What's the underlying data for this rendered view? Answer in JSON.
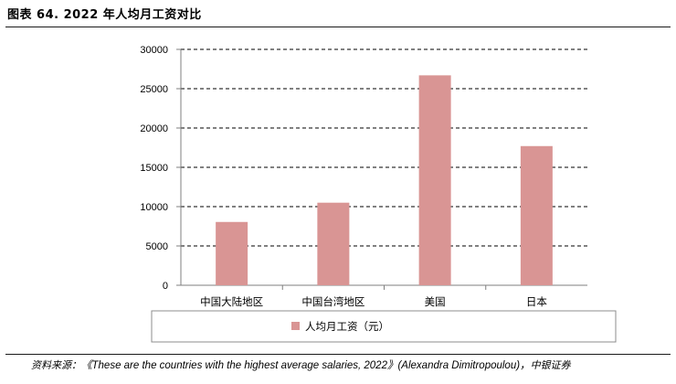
{
  "figure_title": "图表 64. 2022 年人均月工资对比",
  "source": {
    "prefix": "资料来源：",
    "text": "《These are the countries with the highest average salaries, 2022》(Alexandra Dimitropoulou)，",
    "org": "中银证券"
  },
  "colors": {
    "bar": "#d99594",
    "grid": "#000000",
    "axis": "#7f7f7f"
  },
  "chart_data": {
    "type": "bar",
    "categories": [
      "中国大陆地区",
      "中国台湾地区",
      "美国",
      "日本"
    ],
    "series": [
      {
        "name": "人均月工资（元）",
        "values": [
          8050,
          10500,
          26700,
          17700
        ]
      }
    ],
    "yticks": [
      0,
      5000,
      10000,
      15000,
      20000,
      25000,
      30000
    ],
    "ylim": [
      0,
      30000
    ],
    "grid": true,
    "grid_style": "dashed",
    "legend_position": "bottom"
  }
}
